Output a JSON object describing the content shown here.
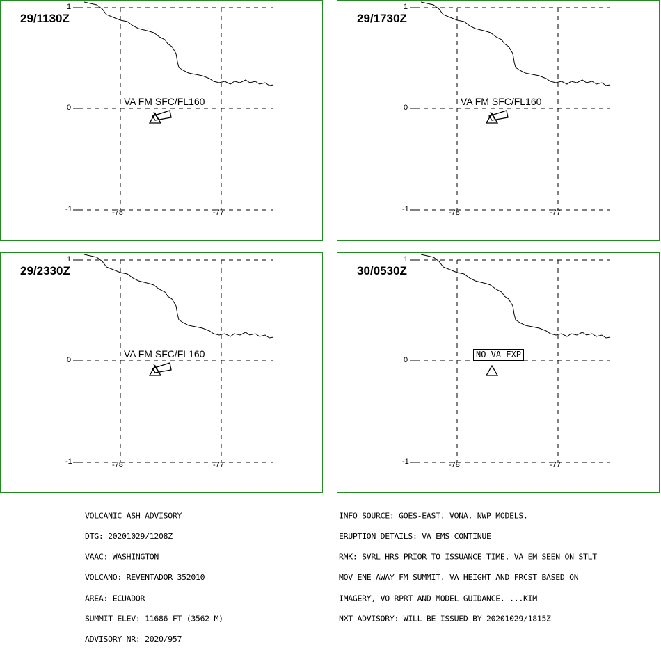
{
  "panels": [
    {
      "time": "29/1130Z",
      "label": "VA FM SFC/FL160",
      "no_va": false
    },
    {
      "time": "29/1730Z",
      "label": "VA FM SFC/FL160",
      "no_va": false
    },
    {
      "time": "29/2330Z",
      "label": "VA FM SFC/FL160",
      "no_va": false
    },
    {
      "time": "30/0530Z",
      "label": "NO VA EXP",
      "no_va": true
    }
  ],
  "axis": {
    "lat_top": "1",
    "lat_mid": "0",
    "lat_bottom": "-1",
    "lon_left": "-78",
    "lon_right": "-77"
  },
  "advisory_left": [
    "VOLCANIC ASH ADVISORY",
    "DTG: 20201029/1208Z",
    "VAAC: WASHINGTON",
    "VOLCANO: REVENTADOR 352010",
    "AREA: ECUADOR",
    "SUMMIT ELEV: 11686 FT (3562 M)",
    "ADVISORY NR: 2020/957"
  ],
  "advisory_right": [
    "INFO SOURCE: GOES-EAST. VONA. NWP MODELS.",
    "ERUPTION DETAILS: VA EMS CONTINUE",
    "RMK: SVRL HRS PRIOR TO ISSUANCE TIME, VA EM SEEN ON STLT",
    "MOV ENE AWAY FM SUMMIT. VA HEIGHT AND FRCST BASED ON",
    "IMAGERY, VO RPRT AND MODEL GUIDANCE. ...KIM",
    "NXT ADVISORY: WILL BE ISSUED BY 20201029/1815Z"
  ],
  "colors": {
    "border": "#228b22",
    "lines": "#000000"
  }
}
